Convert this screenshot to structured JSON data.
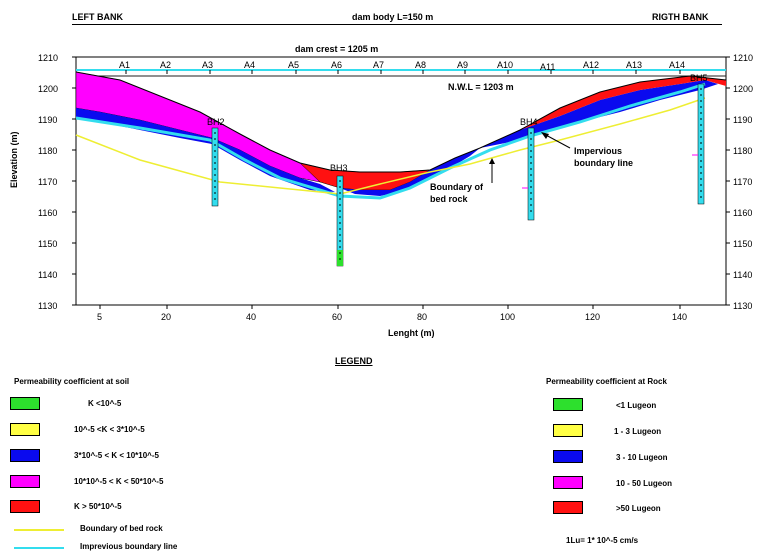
{
  "header": {
    "left": "LEFT BANK",
    "center": "dam body L=150 m",
    "right": "RIGTH BANK"
  },
  "dam_crest": "dam crest = 1205 m",
  "nwl": "N.W.L = 1203 m",
  "sections": [
    "A1",
    "A2",
    "A3",
    "A4",
    "A5",
    "A6",
    "A7",
    "A8",
    "A9",
    "A10",
    "A11",
    "A12",
    "A13",
    "A14"
  ],
  "boreholes": [
    "BH2",
    "BH3",
    "BH4",
    "BH5"
  ],
  "annotations": {
    "impervious": [
      "Impervious",
      "boundary line"
    ],
    "bedrock": [
      "Boundary  of",
      "bed rock"
    ]
  },
  "axes": {
    "y_label": "Elevation (m)",
    "x_label": "Lenght (m)",
    "y_ticks": [
      "1210",
      "1200",
      "1190",
      "1180",
      "1170",
      "1160",
      "1150",
      "1140",
      "1130"
    ],
    "x_ticks": [
      "5",
      "20",
      "40",
      "60",
      "80",
      "100",
      "120",
      "140"
    ],
    "y_ticks_right": [
      "1210",
      "1200",
      "1190",
      "1180",
      "1170",
      "1160",
      "1150",
      "1140",
      "1130"
    ]
  },
  "colors": {
    "green": "#2de02d",
    "yellow": "#ffff44",
    "blue": "#0a0aef",
    "magenta": "#ff00ff",
    "red": "#ff1111",
    "cyan": "#33ddee",
    "bedrock": "#eeee33"
  },
  "legend": {
    "title": "LEGEND",
    "soil_title": "Permeability coefficient at soil",
    "rock_title": "Permeability coefficient at Rock",
    "soil_items": [
      {
        "label": "K <10^-5",
        "color": "#2de02d"
      },
      {
        "label": "10^-5 <K < 3*10^-5",
        "color": "#ffff44"
      },
      {
        "label": "3*10^-5 < K < 10*10^-5",
        "color": "#0a0aef"
      },
      {
        "label": "10*10^-5 < K < 50*10^-5",
        "color": "#ff00ff"
      },
      {
        "label": "K > 50*10^-5",
        "color": "#ff1111"
      }
    ],
    "line_items": [
      {
        "label": "Boundary  of bed rock",
        "color": "#eeee33"
      },
      {
        "label": "Imprevious boundary line",
        "color": "#33ddee"
      }
    ],
    "rock_items": [
      {
        "label": "<1 Lugeon",
        "color": "#2de02d"
      },
      {
        "label": "1 - 3 Lugeon",
        "color": "#ffff44"
      },
      {
        "label": "3 - 10 Lugeon",
        "color": "#0a0aef"
      },
      {
        "label": "10 - 50 Lugeon",
        "color": "#ff00ff"
      },
      {
        "label": ">50 Lugeon",
        "color": "#ff1111"
      }
    ],
    "note": "1Lu= 1* 10^-5 cm/s"
  }
}
